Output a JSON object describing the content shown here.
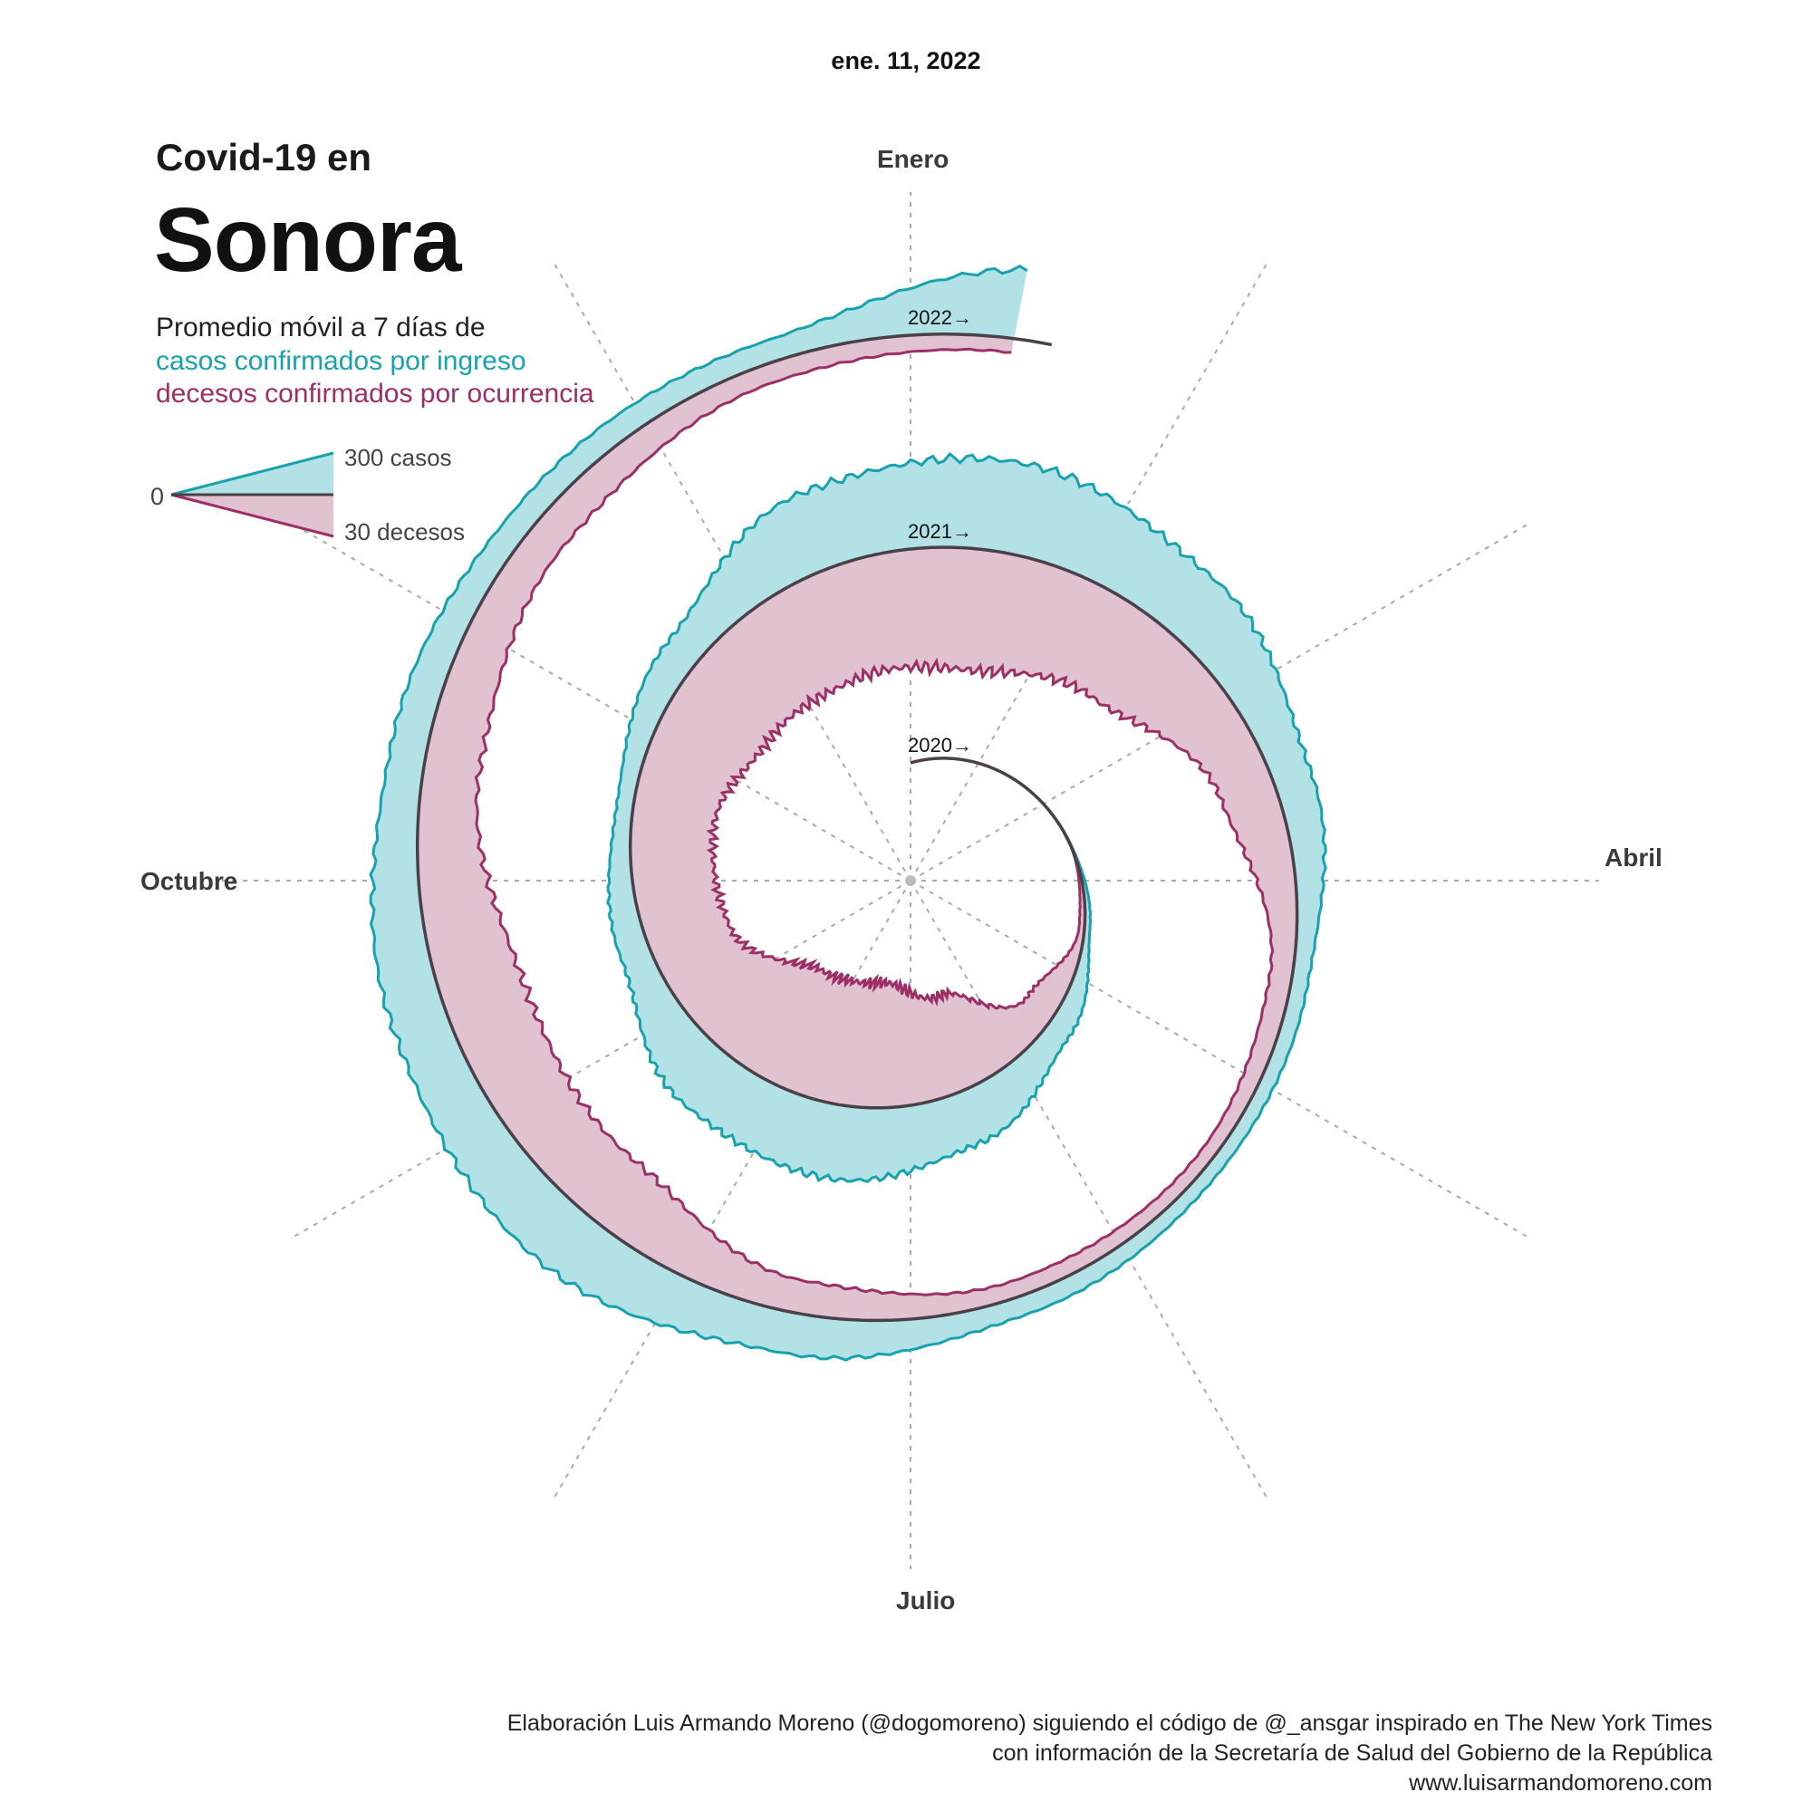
{
  "date": "ene. 11, 2022",
  "title": {
    "line1": "Covid-19 en",
    "line2": "Sonora"
  },
  "subtitle": {
    "line1": "Promedio móvil a 7 días de",
    "cases_label": "casos confirmados por ingreso",
    "deaths_label": "decesos confirmados por ocurrencia"
  },
  "legend": {
    "zero": "0",
    "cases": "300 casos",
    "deaths": "30 decesos"
  },
  "months": {
    "top": "Enero",
    "right": "Abril",
    "bottom": "Julio",
    "left": "Octubre"
  },
  "credits": {
    "line1": "Elaboración Luis Armando Moreno (@dogomoreno) siguiendo el código de @_ansgar inspirado en The New York Times",
    "line2": "con información de la Secretaría de Salud del Gobierno de la República",
    "line3": "www.luisarmandomoreno.com"
  },
  "colors": {
    "cases": "#17a2ad",
    "cases_fill": "#b2e2e6",
    "deaths": "#9c2f66",
    "deaths_fill": "#e0c2d1",
    "baseline": "#4a4148",
    "grid": "#aaaaaa"
  },
  "chart_data": {
    "type": "area",
    "layout": "spiral (one turn per year, clockwise from January at top)",
    "series": [
      {
        "name": "casos confirmados por ingreso",
        "unit": "casos",
        "legend_scale_value": 300,
        "x": [
          "2020-03",
          "2020-04",
          "2020-05",
          "2020-06",
          "2020-07",
          "2020-08",
          "2020-09",
          "2020-10",
          "2020-11",
          "2020-12",
          "2021-01",
          "2021-02",
          "2021-03",
          "2021-04",
          "2021-05",
          "2021-06",
          "2021-07",
          "2021-08",
          "2021-09",
          "2021-10",
          "2021-11",
          "2021-12",
          "2022-01"
        ],
        "values": [
          2,
          20,
          90,
          200,
          270,
          240,
          110,
          60,
          130,
          290,
          330,
          250,
          140,
          60,
          50,
          70,
          150,
          240,
          200,
          130,
          90,
          80,
          260
        ]
      },
      {
        "name": "decesos confirmados por ocurrencia",
        "unit": "decesos",
        "legend_scale_value": 30,
        "x": [
          "2020-03",
          "2020-04",
          "2020-05",
          "2020-06",
          "2020-07",
          "2020-08",
          "2020-09",
          "2020-10",
          "2020-11",
          "2020-12",
          "2021-01",
          "2021-02",
          "2021-03",
          "2021-04",
          "2021-05",
          "2021-06",
          "2021-07",
          "2021-08",
          "2021-09",
          "2021-10",
          "2021-11",
          "2021-12",
          "2022-01"
        ],
        "values": [
          0,
          2,
          12,
          35,
          46,
          45,
          30,
          30,
          38,
          41,
          44,
          36,
          20,
          8,
          5,
          6,
          12,
          26,
          30,
          20,
          13,
          7,
          5
        ]
      }
    ],
    "year_labels": [
      "2020→",
      "2021→",
      "2022→"
    ],
    "month_labels": [
      "Enero",
      "Abril",
      "Julio",
      "Octubre"
    ]
  }
}
